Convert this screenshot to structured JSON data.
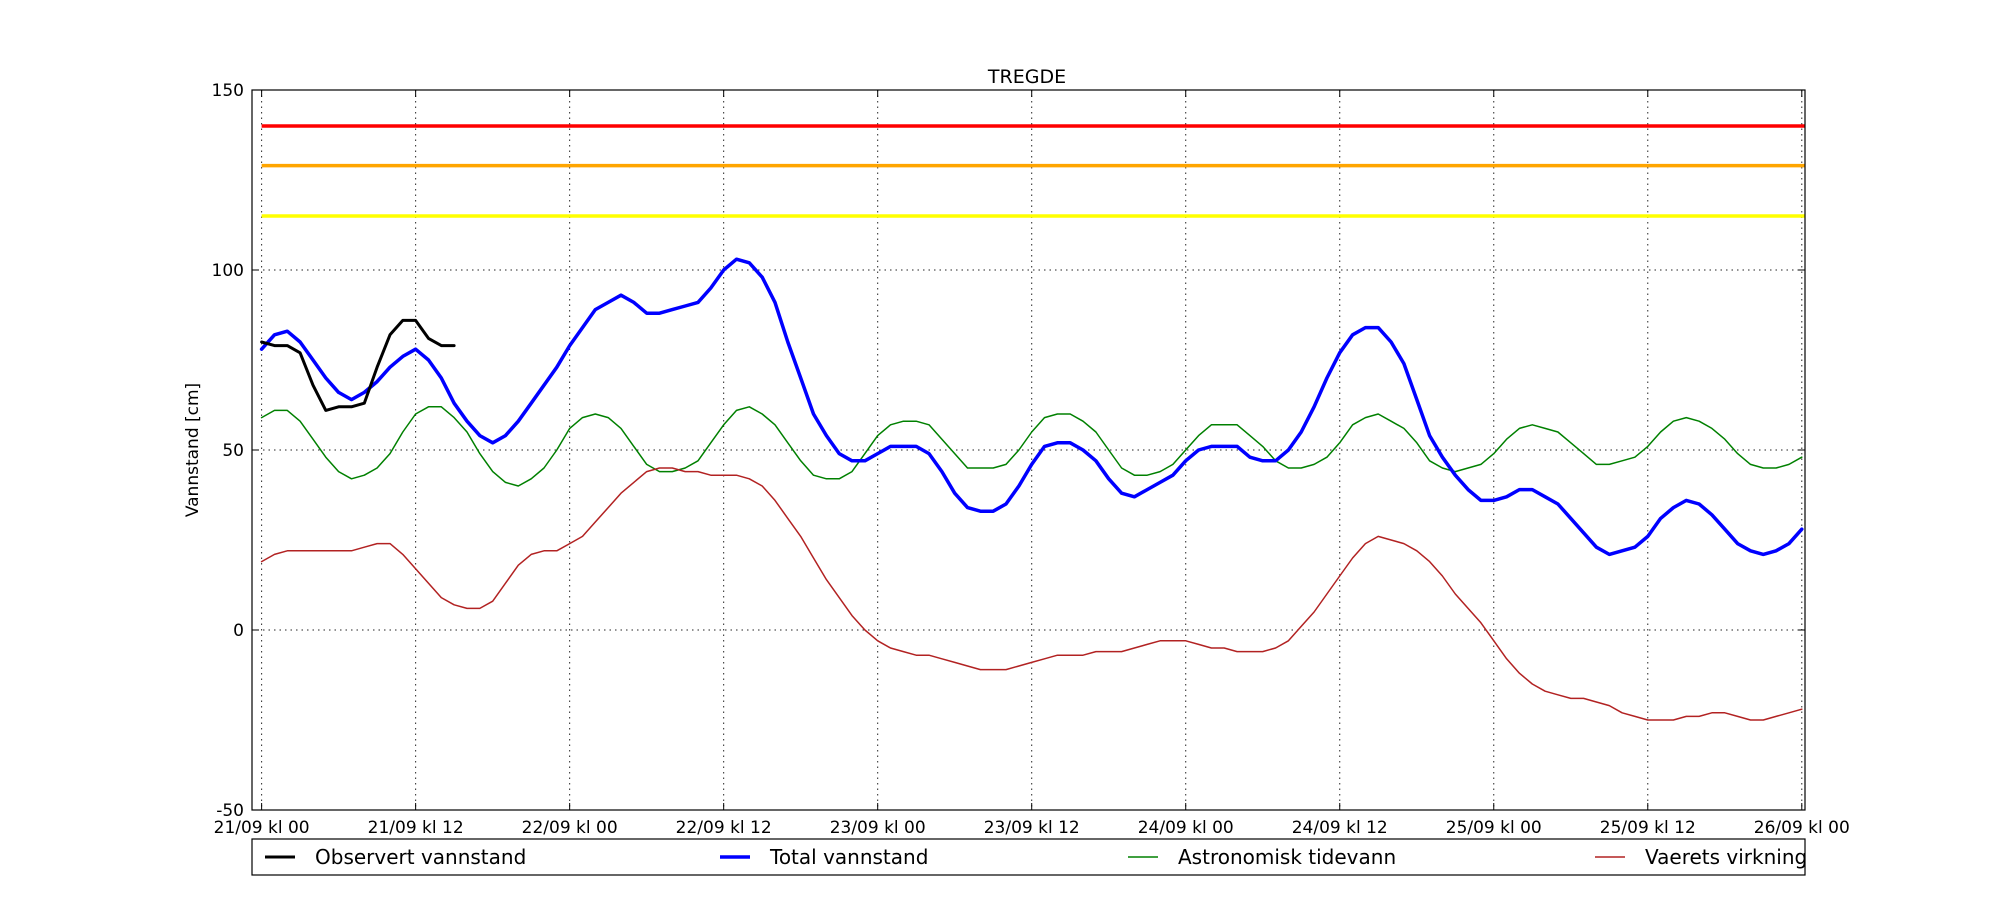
{
  "chart_data": {
    "type": "line",
    "title": "TREGDE",
    "xlabel": "",
    "ylabel": "Vannstand [cm]",
    "ylim": [
      -50,
      150
    ],
    "y_ticks": [
      -50,
      0,
      50,
      100,
      150
    ],
    "x_range_hours": [
      -0.75,
      120.25
    ],
    "x_ticks": [
      {
        "hour": 0,
        "label": "21/09 kl 00"
      },
      {
        "hour": 12,
        "label": "21/09 kl 12"
      },
      {
        "hour": 24,
        "label": "22/09 kl 00"
      },
      {
        "hour": 36,
        "label": "22/09 kl 12"
      },
      {
        "hour": 48,
        "label": "23/09 kl 00"
      },
      {
        "hour": 60,
        "label": "23/09 kl 12"
      },
      {
        "hour": 72,
        "label": "24/09 kl 00"
      },
      {
        "hour": 84,
        "label": "24/09 kl 12"
      },
      {
        "hour": 96,
        "label": "25/09 kl 00"
      },
      {
        "hour": 108,
        "label": "25/09 kl 12"
      },
      {
        "hour": 120,
        "label": "26/09 kl 00"
      }
    ],
    "grid": true,
    "legend_position": "bottom",
    "threshold_lines": [
      {
        "value": 140,
        "color": "#ff0000"
      },
      {
        "value": 129,
        "color": "#ffa500"
      },
      {
        "value": 115,
        "color": "#ffff00"
      }
    ],
    "series": [
      {
        "name": "Observert vannstand",
        "color": "#000000",
        "stroke_width": 3,
        "x": [
          0,
          1,
          2,
          3,
          4,
          5,
          6,
          7,
          8,
          9,
          10,
          11,
          12,
          13,
          14,
          15
        ],
        "y": [
          80,
          79,
          79,
          77,
          68,
          61,
          62,
          62,
          63,
          73,
          82,
          86,
          86,
          81,
          79,
          79
        ]
      },
      {
        "name": "Total vannstand",
        "color": "#0000ff",
        "stroke_width": 3.5,
        "x": [
          0,
          1,
          2,
          3,
          4,
          5,
          6,
          7,
          8,
          9,
          10,
          11,
          12,
          13,
          14,
          15,
          16,
          17,
          18,
          19,
          20,
          21,
          22,
          23,
          24,
          25,
          26,
          27,
          28,
          29,
          30,
          31,
          32,
          33,
          34,
          35,
          36,
          37,
          38,
          39,
          40,
          41,
          42,
          43,
          44,
          45,
          46,
          47,
          48,
          49,
          50,
          51,
          52,
          53,
          54,
          55,
          56,
          57,
          58,
          59,
          60,
          61,
          62,
          63,
          64,
          65,
          66,
          67,
          68,
          69,
          70,
          71,
          72,
          73,
          74,
          75,
          76,
          77,
          78,
          79,
          80,
          81,
          82,
          83,
          84,
          85,
          86,
          87,
          88,
          89,
          90,
          91,
          92,
          93,
          94,
          95,
          96,
          97,
          98,
          99,
          100,
          101,
          102,
          103,
          104,
          105,
          106,
          107,
          108,
          109,
          110,
          111,
          112,
          113,
          114,
          115,
          116,
          117,
          118,
          119,
          120
        ],
        "y": [
          78,
          82,
          83,
          80,
          75,
          70,
          66,
          64,
          66,
          69,
          73,
          76,
          78,
          75,
          70,
          63,
          58,
          54,
          52,
          54,
          58,
          63,
          68,
          73,
          79,
          84,
          89,
          91,
          93,
          91,
          88,
          88,
          89,
          90,
          91,
          95,
          100,
          103,
          102,
          98,
          91,
          80,
          70,
          60,
          54,
          49,
          47,
          47,
          49,
          51,
          51,
          51,
          49,
          44,
          38,
          34,
          33,
          33,
          35,
          40,
          46,
          51,
          52,
          52,
          50,
          47,
          42,
          38,
          37,
          39,
          41,
          43,
          47,
          50,
          51,
          51,
          51,
          48,
          47,
          47,
          50,
          55,
          62,
          70,
          77,
          82,
          84,
          84,
          80,
          74,
          64,
          54,
          48,
          43,
          39,
          36,
          36,
          37,
          39,
          39,
          37,
          35,
          31,
          27,
          23,
          21,
          22,
          23,
          26,
          31,
          34,
          36,
          35,
          32,
          28,
          24,
          22,
          21,
          22,
          24,
          28
        ]
      },
      {
        "name": "Astronomisk tidevann",
        "color": "#008000",
        "stroke_width": 1.5,
        "x": [
          0,
          1,
          2,
          3,
          4,
          5,
          6,
          7,
          8,
          9,
          10,
          11,
          12,
          13,
          14,
          15,
          16,
          17,
          18,
          19,
          20,
          21,
          22,
          23,
          24,
          25,
          26,
          27,
          28,
          29,
          30,
          31,
          32,
          33,
          34,
          35,
          36,
          37,
          38,
          39,
          40,
          41,
          42,
          43,
          44,
          45,
          46,
          47,
          48,
          49,
          50,
          51,
          52,
          53,
          54,
          55,
          56,
          57,
          58,
          59,
          60,
          61,
          62,
          63,
          64,
          65,
          66,
          67,
          68,
          69,
          70,
          71,
          72,
          73,
          74,
          75,
          76,
          77,
          78,
          79,
          80,
          81,
          82,
          83,
          84,
          85,
          86,
          87,
          88,
          89,
          90,
          91,
          92,
          93,
          94,
          95,
          96,
          97,
          98,
          99,
          100,
          101,
          102,
          103,
          104,
          105,
          106,
          107,
          108,
          109,
          110,
          111,
          112,
          113,
          114,
          115,
          116,
          117,
          118,
          119,
          120
        ],
        "y": [
          59,
          61,
          61,
          58,
          53,
          48,
          44,
          42,
          43,
          45,
          49,
          55,
          60,
          62,
          62,
          59,
          55,
          49,
          44,
          41,
          40,
          42,
          45,
          50,
          56,
          59,
          60,
          59,
          56,
          51,
          46,
          44,
          44,
          45,
          47,
          52,
          57,
          61,
          62,
          60,
          57,
          52,
          47,
          43,
          42,
          42,
          44,
          49,
          54,
          57,
          58,
          58,
          57,
          53,
          49,
          45,
          45,
          45,
          46,
          50,
          55,
          59,
          60,
          60,
          58,
          55,
          50,
          45,
          43,
          43,
          44,
          46,
          50,
          54,
          57,
          57,
          57,
          54,
          51,
          47,
          45,
          45,
          46,
          48,
          52,
          57,
          59,
          60,
          58,
          56,
          52,
          47,
          45,
          44,
          45,
          46,
          49,
          53,
          56,
          57,
          56,
          55,
          52,
          49,
          46,
          46,
          47,
          48,
          51,
          55,
          58,
          59,
          58,
          56,
          53,
          49,
          46,
          45,
          45,
          46,
          48
        ]
      },
      {
        "name": "Vaerets virkning",
        "color": "#b22222",
        "stroke_width": 1.5,
        "x": [
          0,
          1,
          2,
          3,
          4,
          5,
          6,
          7,
          8,
          9,
          10,
          11,
          12,
          13,
          14,
          15,
          16,
          17,
          18,
          19,
          20,
          21,
          22,
          23,
          24,
          25,
          26,
          27,
          28,
          29,
          30,
          31,
          32,
          33,
          34,
          35,
          36,
          37,
          38,
          39,
          40,
          41,
          42,
          43,
          44,
          45,
          46,
          47,
          48,
          49,
          50,
          51,
          52,
          53,
          54,
          55,
          56,
          57,
          58,
          59,
          60,
          61,
          62,
          63,
          64,
          65,
          66,
          67,
          68,
          69,
          70,
          71,
          72,
          73,
          74,
          75,
          76,
          77,
          78,
          79,
          80,
          81,
          82,
          83,
          84,
          85,
          86,
          87,
          88,
          89,
          90,
          91,
          92,
          93,
          94,
          95,
          96,
          97,
          98,
          99,
          100,
          101,
          102,
          103,
          104,
          105,
          106,
          107,
          108,
          109,
          110,
          111,
          112,
          113,
          114,
          115,
          116,
          117,
          118,
          119,
          120
        ],
        "y": [
          19,
          21,
          22,
          22,
          22,
          22,
          22,
          22,
          23,
          24,
          24,
          21,
          17,
          13,
          9,
          7,
          6,
          6,
          8,
          13,
          18,
          21,
          22,
          22,
          24,
          26,
          30,
          34,
          38,
          41,
          44,
          45,
          45,
          44,
          44,
          43,
          43,
          43,
          42,
          40,
          36,
          31,
          26,
          20,
          14,
          9,
          4,
          0,
          -3,
          -5,
          -6,
          -7,
          -7,
          -8,
          -9,
          -10,
          -11,
          -11,
          -11,
          -10,
          -9,
          -8,
          -7,
          -7,
          -7,
          -6,
          -6,
          -6,
          -5,
          -4,
          -3,
          -3,
          -3,
          -4,
          -5,
          -5,
          -6,
          -6,
          -6,
          -5,
          -3,
          1,
          5,
          10,
          15,
          20,
          24,
          26,
          25,
          24,
          22,
          19,
          15,
          10,
          6,
          2,
          -3,
          -8,
          -12,
          -15,
          -17,
          -18,
          -19,
          -19,
          -20,
          -21,
          -23,
          -24,
          -25,
          -25,
          -25,
          -24,
          -24,
          -23,
          -23,
          -24,
          -25,
          -25,
          -24,
          -23,
          -22
        ]
      }
    ]
  }
}
